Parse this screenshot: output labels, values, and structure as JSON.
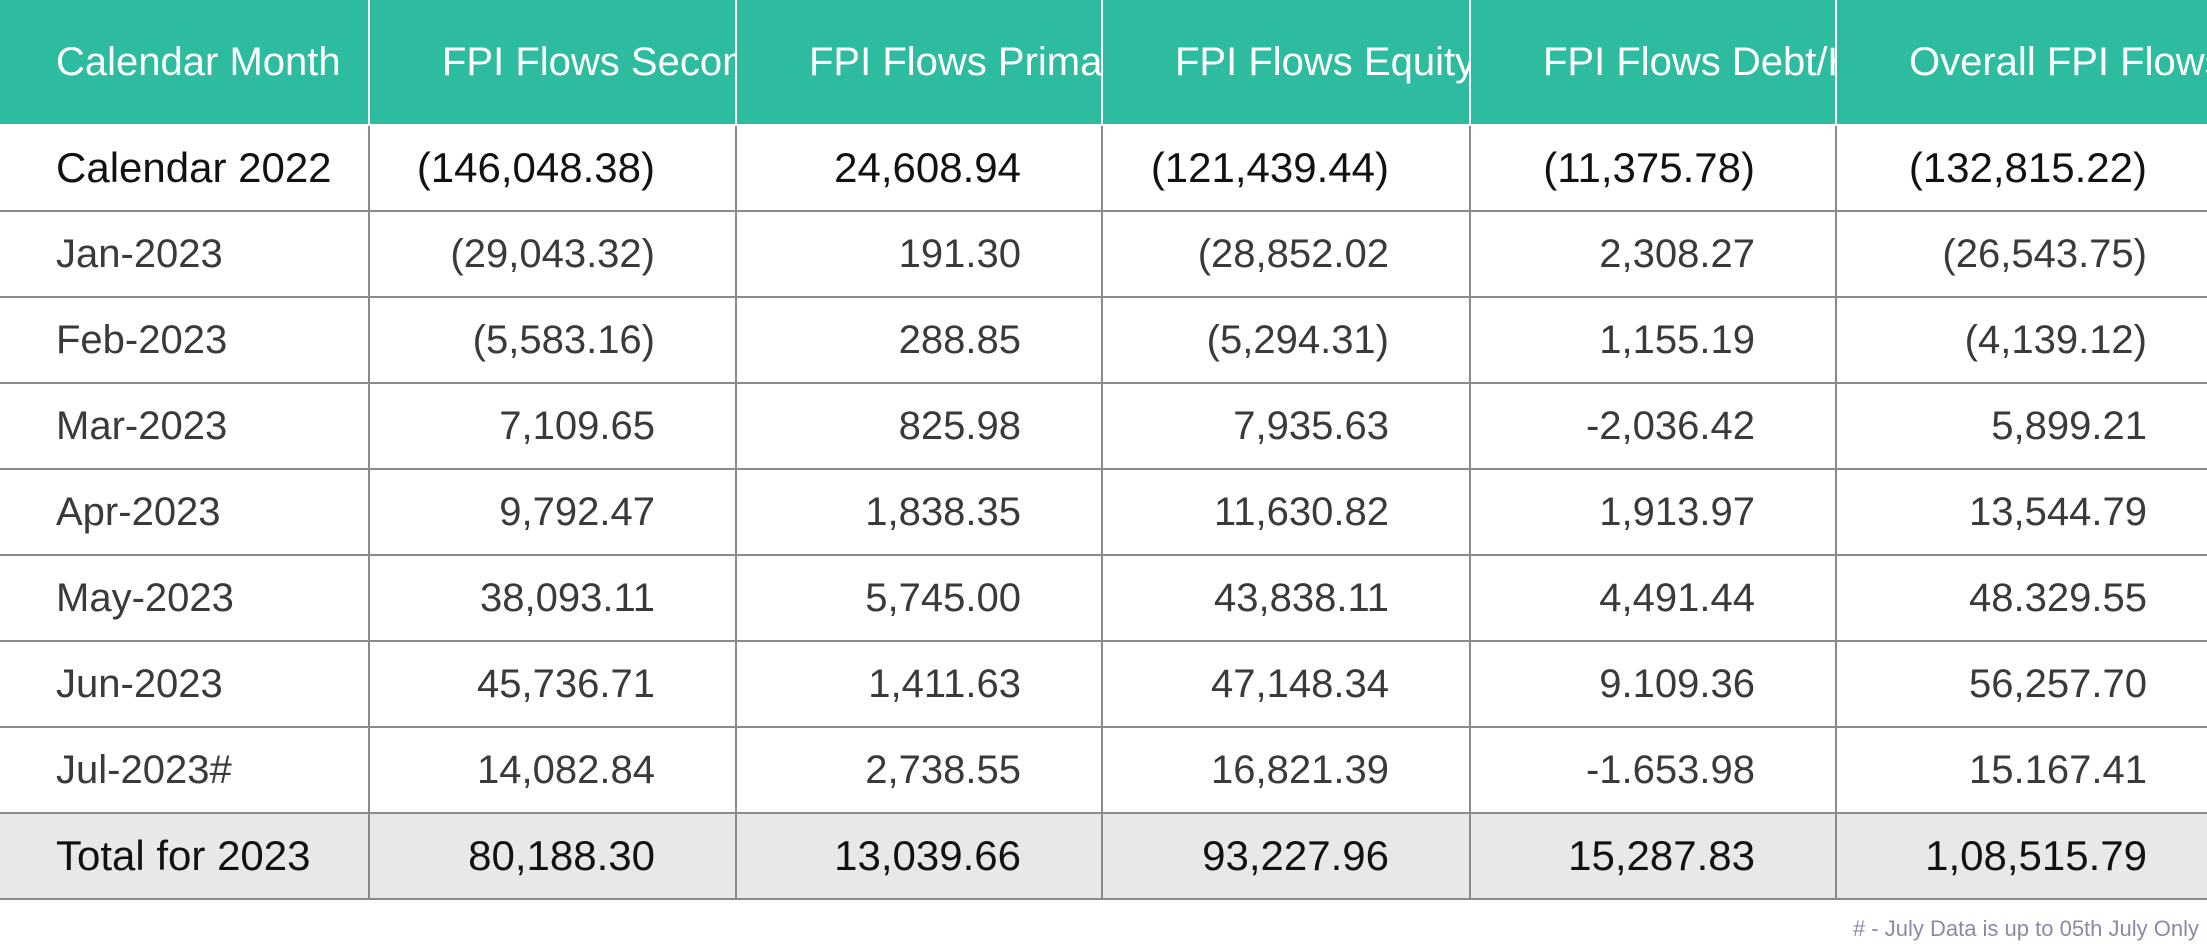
{
  "chart_data": {
    "type": "table",
    "columns": [
      "Calendar Month",
      "FPI Flows Secondary",
      "FPI Flows Primary",
      "FPI Flows Equity",
      "FPI Flows Debt/Hybrid",
      "Overall FPI Flows"
    ],
    "rows": [
      [
        "Calendar 2022",
        "(146,048.38)",
        "24,608.94",
        "(121,439.44)",
        "(11,375.78)",
        "(132,815.22)"
      ],
      [
        "Jan-2023",
        "(29,043.32)",
        "191.30",
        "(28,852.02",
        "2,308.27",
        "(26,543.75)"
      ],
      [
        "Feb-2023",
        "(5,583.16)",
        "288.85",
        "(5,294.31)",
        "1,155.19",
        "(4,139.12)"
      ],
      [
        "Mar-2023",
        "7,109.65",
        "825.98",
        "7,935.63",
        "-2,036.42",
        "5,899.21"
      ],
      [
        "Apr-2023",
        "9,792.47",
        "1,838.35",
        "11,630.82",
        "1,913.97",
        "13,544.79"
      ],
      [
        "May-2023",
        "38,093.11",
        "5,745.00",
        "43,838.11",
        "4,491.44",
        "48.329.55"
      ],
      [
        "Jun-2023",
        "45,736.71",
        "1,411.63",
        "47,148.34",
        "9.109.36",
        "56,257.70"
      ],
      [
        "Jul-2023#",
        "14,082.84",
        "2,738.55",
        "16,821.39",
        "-1.653.98",
        "15.167.41"
      ],
      [
        "Total for 2023",
        "80,188.30",
        "13,039.66",
        "93,227.96",
        "15,287.83",
        "1,08,515.79"
      ]
    ],
    "footnote": "#  - July Data is up to 05th July Only",
    "colors": {
      "header_bg": "#2dbc9f",
      "header_text": "#ffffff",
      "total_bg": "#e8e8e8",
      "grid": "#8a8a8a"
    }
  }
}
